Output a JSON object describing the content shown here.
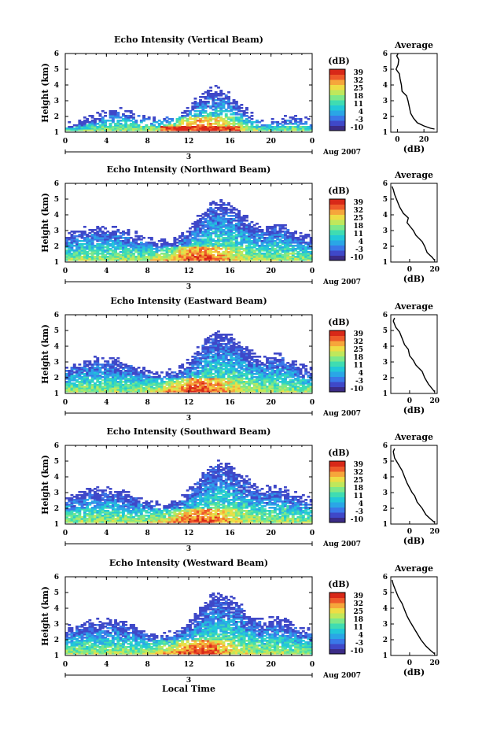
{
  "colors": {
    "colormap": [
      "#3b2b86",
      "#3f48c8",
      "#3a78e8",
      "#2aa6e6",
      "#22c8d8",
      "#3fdcb2",
      "#7de88a",
      "#bfe85c",
      "#eedd45",
      "#f6a63b",
      "#ee5a2a",
      "#d82818"
    ]
  },
  "figure": {
    "xlabel": "Local Time"
  },
  "chart_data": [
    {
      "type": "heatmap",
      "title": "Echo Intensity (Vertical Beam)",
      "ylabel": "Height (km)",
      "xlim": [
        0,
        24
      ],
      "ylim": [
        1,
        6
      ],
      "x_ticks": [
        "0",
        "4",
        "8",
        "12",
        "16",
        "20",
        "0"
      ],
      "y_ticks": [
        "1",
        "2",
        "3",
        "4",
        "5",
        "6"
      ],
      "day_label": "3",
      "month_label": "Aug 2007",
      "colorbar": {
        "unit": "(dB)",
        "ticks": [
          "39",
          "32",
          "25",
          "18",
          "11",
          "4",
          "-3",
          "-10"
        ],
        "range": [
          -10,
          39
        ]
      },
      "pattern": "vertical",
      "average": {
        "title": "Average",
        "xlabel": "(dB)",
        "x_ticks": [
          "0",
          "20"
        ],
        "xlim": [
          -5,
          30
        ],
        "ylim": [
          1,
          6
        ],
        "y_ticks": [
          "1",
          "2",
          "3",
          "4",
          "5",
          "6"
        ],
        "profile": [
          [
            28,
            1.2
          ],
          [
            25,
            1.25
          ],
          [
            20,
            1.4
          ],
          [
            15,
            1.6
          ],
          [
            12,
            1.9
          ],
          [
            10,
            2.2
          ],
          [
            9,
            2.6
          ],
          [
            8,
            3.0
          ],
          [
            7,
            3.3
          ],
          [
            3.5,
            3.6
          ],
          [
            3,
            4.0
          ],
          [
            2,
            4.4
          ],
          [
            1.5,
            4.7
          ],
          [
            -1,
            5.0
          ],
          [
            0.5,
            5.3
          ],
          [
            1,
            5.6
          ],
          [
            -0.5,
            5.85
          ],
          [
            0.5,
            6.0
          ]
        ]
      }
    },
    {
      "type": "heatmap",
      "title": "Echo Intensity (Northward Beam)",
      "ylabel": "Height (km)",
      "xlim": [
        0,
        24
      ],
      "ylim": [
        1,
        6
      ],
      "x_ticks": [
        "0",
        "4",
        "8",
        "12",
        "16",
        "20",
        "0"
      ],
      "y_ticks": [
        "1",
        "2",
        "3",
        "4",
        "5",
        "6"
      ],
      "day_label": "3",
      "month_label": "Aug 2007",
      "colorbar": {
        "unit": "(dB)",
        "ticks": [
          "39",
          "32",
          "25",
          "18",
          "11",
          "4",
          "-3",
          "-10"
        ],
        "range": [
          -10,
          39
        ]
      },
      "pattern": "oblique",
      "average": {
        "title": "Average",
        "xlabel": "(dB)",
        "x_ticks": [
          "0",
          "20"
        ],
        "xlim": [
          -15,
          22
        ],
        "ylim": [
          1,
          6
        ],
        "y_ticks": [
          "1",
          "2",
          "3",
          "4",
          "5",
          "6"
        ],
        "profile": [
          [
            20,
            1.1
          ],
          [
            18,
            1.3
          ],
          [
            14,
            1.6
          ],
          [
            12,
            2.0
          ],
          [
            10,
            2.3
          ],
          [
            5,
            2.7
          ],
          [
            3,
            3.0
          ],
          [
            0,
            3.3
          ],
          [
            -2,
            3.5
          ],
          [
            -1,
            3.8
          ],
          [
            -5,
            4.1
          ],
          [
            -8,
            4.5
          ],
          [
            -10,
            4.9
          ],
          [
            -12,
            5.3
          ],
          [
            -13,
            5.6
          ],
          [
            -14,
            5.8
          ]
        ]
      }
    },
    {
      "type": "heatmap",
      "title": "Echo Intensity (Eastward Beam)",
      "ylabel": "Height (km)",
      "xlim": [
        0,
        24
      ],
      "ylim": [
        1,
        6
      ],
      "x_ticks": [
        "0",
        "4",
        "8",
        "12",
        "16",
        "20",
        "0"
      ],
      "y_ticks": [
        "1",
        "2",
        "3",
        "4",
        "5",
        "6"
      ],
      "day_label": "3",
      "month_label": "Aug 2007",
      "colorbar": {
        "unit": "(dB)",
        "ticks": [
          "39",
          "32",
          "25",
          "18",
          "11",
          "4",
          "-3",
          "-10"
        ],
        "range": [
          -10,
          39
        ]
      },
      "pattern": "oblique",
      "average": {
        "title": "Average",
        "xlabel": "(dB)",
        "x_ticks": [
          "0",
          "20"
        ],
        "xlim": [
          -15,
          22
        ],
        "ylim": [
          1,
          6
        ],
        "y_ticks": [
          "1",
          "2",
          "3",
          "4",
          "5",
          "6"
        ],
        "profile": [
          [
            20,
            1.1
          ],
          [
            18,
            1.3
          ],
          [
            15,
            1.6
          ],
          [
            12,
            2.0
          ],
          [
            10,
            2.4
          ],
          [
            5,
            2.8
          ],
          [
            3,
            3.1
          ],
          [
            0,
            3.4
          ],
          [
            -1,
            3.8
          ],
          [
            -4,
            4.1
          ],
          [
            -6,
            4.5
          ],
          [
            -8,
            4.9
          ],
          [
            -11,
            5.2
          ],
          [
            -13,
            5.6
          ],
          [
            -12,
            5.8
          ]
        ]
      }
    },
    {
      "type": "heatmap",
      "title": "Echo Intensity (Southward Beam)",
      "ylabel": "Height (km)",
      "xlim": [
        0,
        24
      ],
      "ylim": [
        1,
        6
      ],
      "x_ticks": [
        "0",
        "4",
        "8",
        "12",
        "16",
        "20",
        "0"
      ],
      "y_ticks": [
        "1",
        "2",
        "3",
        "4",
        "5",
        "6"
      ],
      "day_label": "3",
      "month_label": "Aug 2007",
      "colorbar": {
        "unit": "(dB)",
        "ticks": [
          "39",
          "32",
          "25",
          "18",
          "11",
          "4",
          "-3",
          "-10"
        ],
        "range": [
          -10,
          39
        ]
      },
      "pattern": "oblique",
      "average": {
        "title": "Average",
        "xlabel": "(dB)",
        "x_ticks": [
          "0",
          "20"
        ],
        "xlim": [
          -15,
          22
        ],
        "ylim": [
          1,
          6
        ],
        "y_ticks": [
          "1",
          "2",
          "3",
          "4",
          "5",
          "6"
        ],
        "profile": [
          [
            20,
            1.1
          ],
          [
            17,
            1.3
          ],
          [
            13,
            1.6
          ],
          [
            10,
            2.0
          ],
          [
            6,
            2.4
          ],
          [
            4,
            2.8
          ],
          [
            2,
            3.0
          ],
          [
            0,
            3.3
          ],
          [
            -2,
            3.6
          ],
          [
            -4,
            4.0
          ],
          [
            -6,
            4.4
          ],
          [
            -9,
            4.8
          ],
          [
            -12,
            5.2
          ],
          [
            -13,
            5.6
          ],
          [
            -12,
            5.8
          ]
        ]
      }
    },
    {
      "type": "heatmap",
      "title": "Echo Intensity (Westward Beam)",
      "ylabel": "Height (km)",
      "xlim": [
        0,
        24
      ],
      "ylim": [
        1,
        6
      ],
      "x_ticks": [
        "0",
        "4",
        "8",
        "12",
        "16",
        "20",
        "0"
      ],
      "y_ticks": [
        "1",
        "2",
        "3",
        "4",
        "5",
        "6"
      ],
      "day_label": "3",
      "month_label": "Aug 2007",
      "colorbar": {
        "unit": "(dB)",
        "ticks": [
          "39",
          "32",
          "25",
          "18",
          "11",
          "4",
          "-3",
          "-10"
        ],
        "range": [
          -10,
          39
        ]
      },
      "pattern": "oblique",
      "average": {
        "title": "Average",
        "xlabel": "(dB)",
        "x_ticks": [
          "0",
          "20"
        ],
        "xlim": [
          -15,
          22
        ],
        "ylim": [
          1,
          6
        ],
        "y_ticks": [
          "1",
          "2",
          "3",
          "4",
          "5",
          "6"
        ],
        "profile": [
          [
            20,
            1.1
          ],
          [
            17,
            1.3
          ],
          [
            13,
            1.6
          ],
          [
            9,
            2.0
          ],
          [
            6,
            2.4
          ],
          [
            3,
            2.8
          ],
          [
            0,
            3.2
          ],
          [
            -2,
            3.5
          ],
          [
            -4,
            3.9
          ],
          [
            -6,
            4.3
          ],
          [
            -9,
            4.7
          ],
          [
            -11,
            5.1
          ],
          [
            -13,
            5.5
          ],
          [
            -14,
            5.8
          ]
        ]
      }
    }
  ]
}
